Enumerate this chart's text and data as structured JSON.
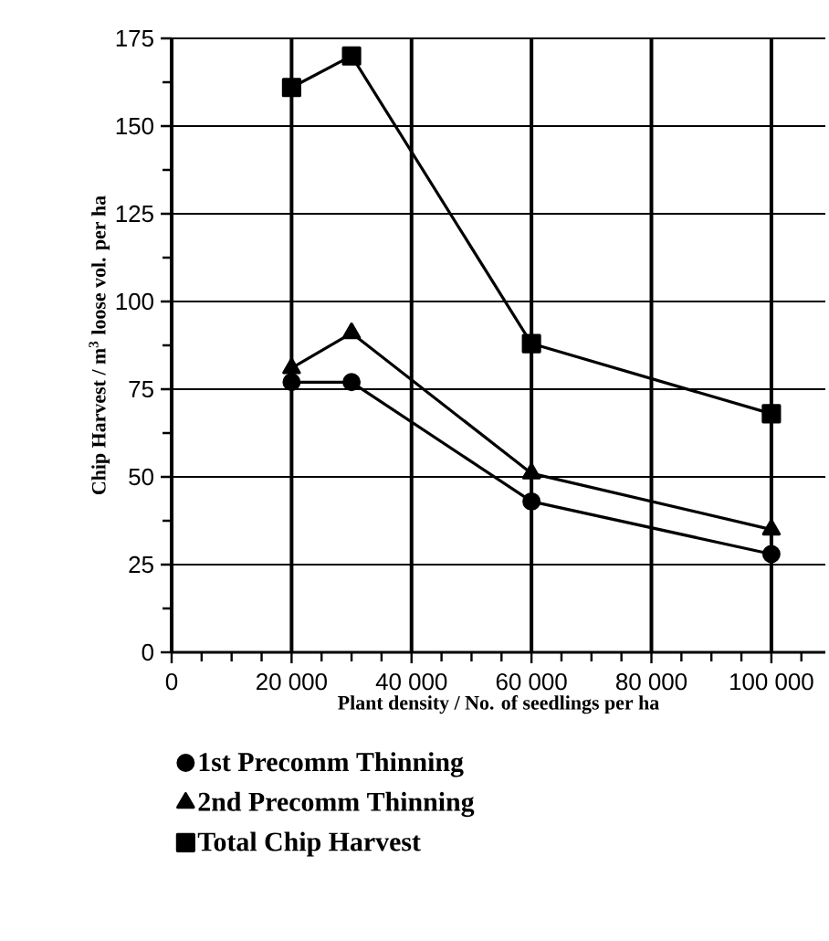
{
  "chart_data": {
    "type": "line",
    "xlabel": "Plant density / No. of seedlings per ha",
    "ylabel": "Chip Harvest / m$^{3}$ loose vol. per ha",
    "xlim": [
      0,
      109000
    ],
    "ylim": [
      0,
      175
    ],
    "xticks": [
      0,
      {
        "value": 5000,
        "label": null
      },
      {
        "value": 10000,
        "label": null
      },
      {
        "value": 15000,
        "label": null
      },
      {
        "value": 20000,
        "label": "20 000"
      },
      {
        "value": 25000,
        "label": null
      },
      {
        "value": 30000,
        "label": null
      },
      {
        "value": 35000,
        "label": null
      },
      {
        "value": 40000,
        "label": "40 000"
      },
      {
        "value": 45000,
        "label": null
      },
      {
        "value": 50000,
        "label": null
      },
      {
        "value": 55000,
        "label": null
      },
      {
        "value": 60000,
        "label": "60 000"
      },
      {
        "value": 65000,
        "label": null
      },
      {
        "value": 70000,
        "label": null
      },
      {
        "value": 75000,
        "label": null
      },
      {
        "value": 80000,
        "label": "80 000"
      },
      {
        "value": 85000,
        "label": null
      },
      {
        "value": 90000,
        "label": null
      },
      {
        "value": 95000,
        "label": null
      },
      {
        "value": 100000,
        "label": "100 000"
      },
      {
        "value": 105000,
        "label": null
      }
    ],
    "yticks": [
      0,
      {
        "value": 12.5,
        "label": null
      },
      25,
      {
        "value": 37.5,
        "label": null
      },
      50,
      {
        "value": 62.5,
        "label": null
      },
      75,
      {
        "value": 87.5,
        "label": null
      },
      100,
      {
        "value": 112.5,
        "label": null
      },
      125,
      {
        "value": 137.5,
        "label": null
      },
      150,
      {
        "value": 162.5,
        "label": null
      },
      175
    ],
    "grid": true,
    "legend": "bottom",
    "line_style": "solid",
    "x": [
      20000,
      30000,
      60000,
      100000
    ],
    "series": [
      {
        "name": "1st Precomm Thinning",
        "color": "#000000",
        "marker": "circle",
        "values": [
          77,
          77,
          43,
          28
        ]
      },
      {
        "name": "2nd Precomm Thinning",
        "color": "#000000",
        "marker": "triangle",
        "values": [
          81,
          91,
          51,
          35
        ]
      },
      {
        "name": "Total Chip Harvest",
        "color": "#000000",
        "marker": "square",
        "values": [
          161,
          170,
          88,
          68
        ]
      }
    ]
  }
}
